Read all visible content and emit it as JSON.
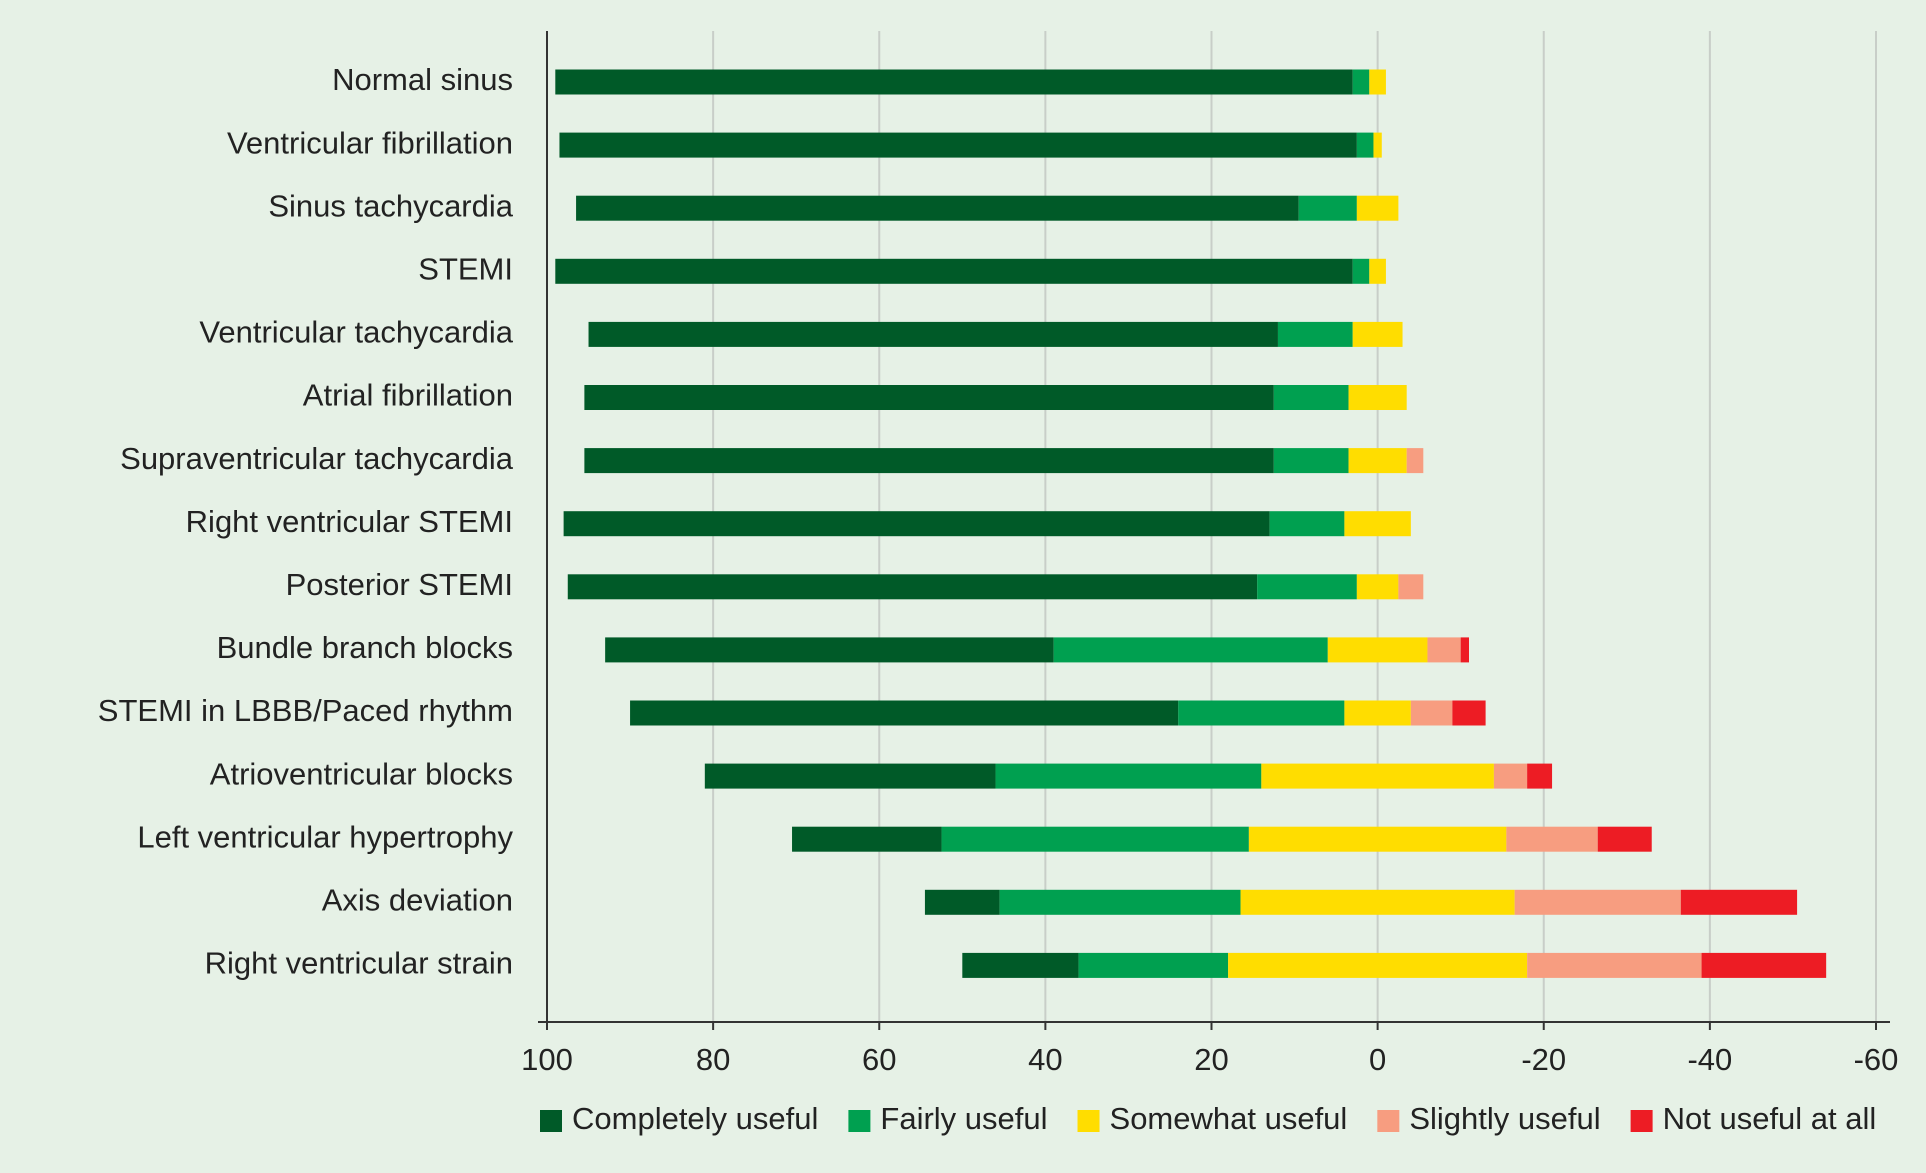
{
  "chart_data": {
    "type": "diverging-stacked-bar",
    "categories": [
      "Normal sinus",
      "Ventricular fibrillation",
      "Sinus tachycardia",
      "STEMI",
      "Ventricular tachycardia",
      "Atrial fibrillation",
      "Supraventricular tachycardia",
      "Right ventricular STEMI",
      "Posterior STEMI",
      "Bundle branch blocks",
      "STEMI in LBBB/Paced rhythm",
      "Atrioventricular blocks",
      "Left ventricular hypertrophy",
      "Axis deviation",
      "Right ventricular strain"
    ],
    "series": [
      {
        "name": "Completely useful",
        "color": "#005a28",
        "values": [
          96,
          96,
          87,
          96,
          83,
          83,
          83,
          85,
          83,
          54,
          66,
          35,
          18,
          9,
          14
        ]
      },
      {
        "name": "Fairly useful",
        "color": "#00a050",
        "values": [
          2,
          2,
          7,
          2,
          9,
          9,
          9,
          9,
          12,
          33,
          20,
          32,
          37,
          29,
          18
        ]
      },
      {
        "name": "Somewhat useful",
        "color": "#ffdd00",
        "values": [
          2,
          1,
          5,
          2,
          6,
          7,
          7,
          8,
          5,
          12,
          8,
          28,
          31,
          33,
          36
        ]
      },
      {
        "name": "Slightly useful",
        "color": "#f79d80",
        "values": [
          0,
          0,
          0,
          0,
          0,
          0,
          2,
          0,
          3,
          4,
          5,
          4,
          11,
          20,
          21
        ]
      },
      {
        "name": "Not useful at all",
        "color": "#ed1c24",
        "values": [
          0,
          0,
          0,
          0,
          0,
          0,
          0,
          0,
          0,
          1,
          4,
          3,
          6.5,
          14,
          15
        ]
      }
    ],
    "xlim": [
      100,
      -60
    ],
    "xticks": [
      100,
      80,
      60,
      40,
      20,
      0,
      -20,
      -40,
      -60
    ],
    "grid": true,
    "legend": "bottom"
  }
}
